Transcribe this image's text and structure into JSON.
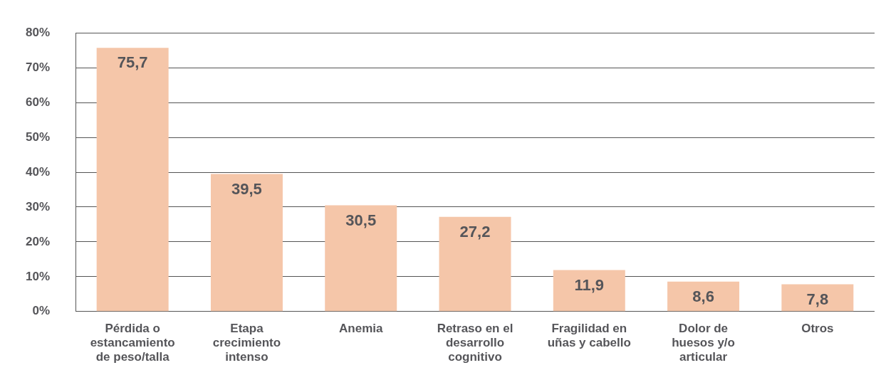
{
  "chart_data": {
    "type": "bar",
    "categories": [
      "Pérdida o estancamiento de peso/talla",
      "Etapa crecimiento intenso",
      "Anemia",
      "Retraso en el desarrollo cognitivo",
      "Fragilidad en uñas y cabello",
      "Dolor de huesos y/o articular",
      "Otros"
    ],
    "values": [
      75.7,
      39.5,
      30.5,
      27.2,
      11.9,
      8.6,
      7.8
    ],
    "value_labels": [
      "75,7",
      "39,5",
      "30,5",
      "27,2",
      "11,9",
      "8,6",
      "7,8"
    ],
    "color": "#f5c6a9",
    "ylim": [
      0,
      80
    ],
    "yticks": [
      {
        "value": 0,
        "label": "0%"
      },
      {
        "value": 10,
        "label": "10%"
      },
      {
        "value": 20,
        "label": "20%"
      },
      {
        "value": 30,
        "label": "30%"
      },
      {
        "value": 40,
        "label": "40%"
      },
      {
        "value": 50,
        "label": "50%"
      },
      {
        "value": 60,
        "label": "60%"
      },
      {
        "value": 70,
        "label": "70%"
      },
      {
        "value": 80,
        "label": "80%"
      }
    ],
    "grid": "y",
    "legend": false
  }
}
